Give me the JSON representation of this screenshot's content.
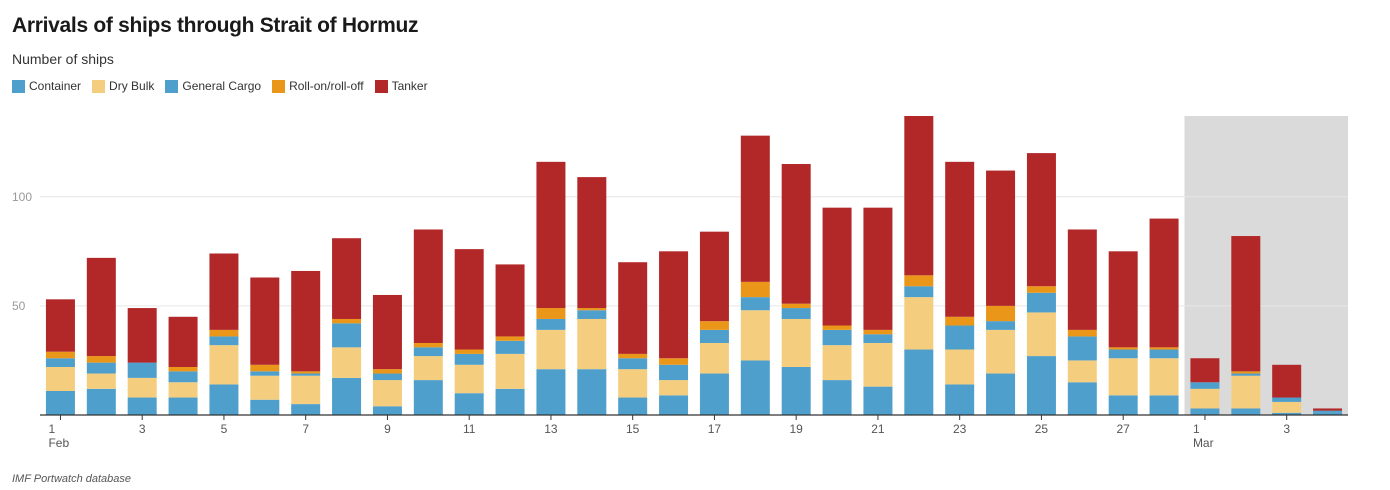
{
  "chart_data": {
    "type": "bar",
    "stacked": true,
    "title": "Arrivals of ships through Strait of Hormuz",
    "subtitle": "Number of ships",
    "source": "IMF Portwatch database",
    "ylim": [
      0,
      137
    ],
    "yticks": [
      "50",
      "100"
    ],
    "ytick_values": [
      50,
      100
    ],
    "grid": true,
    "legend_position": "top-left",
    "highlight_range": {
      "from_index": 28,
      "to_index": 31
    },
    "x_tick_labels": [
      {
        "index": 0,
        "label": "1",
        "sublabel": "Feb"
      },
      {
        "index": 2,
        "label": "3"
      },
      {
        "index": 4,
        "label": "5"
      },
      {
        "index": 6,
        "label": "7"
      },
      {
        "index": 8,
        "label": "9"
      },
      {
        "index": 10,
        "label": "11"
      },
      {
        "index": 12,
        "label": "13"
      },
      {
        "index": 14,
        "label": "15"
      },
      {
        "index": 16,
        "label": "17"
      },
      {
        "index": 18,
        "label": "19"
      },
      {
        "index": 20,
        "label": "21"
      },
      {
        "index": 22,
        "label": "23"
      },
      {
        "index": 24,
        "label": "25"
      },
      {
        "index": 26,
        "label": "27"
      },
      {
        "index": 28,
        "label": "1",
        "sublabel": "Mar"
      },
      {
        "index": 30,
        "label": "3"
      }
    ],
    "categories": [
      "Feb 1",
      "Feb 2",
      "Feb 3",
      "Feb 4",
      "Feb 5",
      "Feb 6",
      "Feb 7",
      "Feb 8",
      "Feb 9",
      "Feb 10",
      "Feb 11",
      "Feb 12",
      "Feb 13",
      "Feb 14",
      "Feb 15",
      "Feb 16",
      "Feb 17",
      "Feb 18",
      "Feb 19",
      "Feb 20",
      "Feb 21",
      "Feb 22",
      "Feb 23",
      "Feb 24",
      "Feb 25",
      "Feb 26",
      "Feb 27",
      "Feb 28",
      "Mar 1",
      "Mar 2",
      "Mar 3",
      "Mar 4"
    ],
    "series": [
      {
        "name": "Container",
        "color": "#4e9fcc",
        "values": [
          11,
          12,
          8,
          8,
          14,
          7,
          5,
          17,
          4,
          16,
          10,
          12,
          21,
          21,
          8,
          9,
          19,
          25,
          22,
          16,
          13,
          30,
          14,
          19,
          27,
          15,
          9,
          9,
          3,
          3,
          1,
          1
        ]
      },
      {
        "name": "Dry Bulk",
        "color": "#f5cd7e",
        "values": [
          11,
          7,
          9,
          7,
          18,
          11,
          13,
          14,
          12,
          11,
          13,
          16,
          18,
          23,
          13,
          7,
          14,
          23,
          22,
          16,
          20,
          24,
          16,
          20,
          20,
          10,
          17,
          17,
          9,
          15,
          5,
          0
        ]
      },
      {
        "name": "General Cargo",
        "color": "#4e9fcc",
        "values": [
          4,
          5,
          7,
          5,
          4,
          2,
          1,
          11,
          3,
          4,
          5,
          6,
          5,
          4,
          5,
          7,
          6,
          6,
          5,
          7,
          4,
          5,
          11,
          4,
          9,
          11,
          4,
          4,
          3,
          1,
          2,
          1
        ]
      },
      {
        "name": "Roll-on/roll-off",
        "color": "#ea9619",
        "values": [
          3,
          3,
          0,
          2,
          3,
          3,
          1,
          2,
          2,
          2,
          2,
          2,
          5,
          1,
          2,
          3,
          4,
          7,
          2,
          2,
          2,
          5,
          4,
          7,
          3,
          3,
          1,
          1,
          0,
          1,
          0,
          0
        ]
      },
      {
        "name": "Tanker",
        "color": "#b22727",
        "values": [
          24,
          45,
          25,
          23,
          35,
          40,
          46,
          37,
          34,
          52,
          46,
          33,
          67,
          60,
          42,
          49,
          41,
          67,
          64,
          54,
          56,
          73,
          71,
          62,
          61,
          46,
          44,
          59,
          11,
          62,
          15,
          1
        ]
      }
    ]
  }
}
